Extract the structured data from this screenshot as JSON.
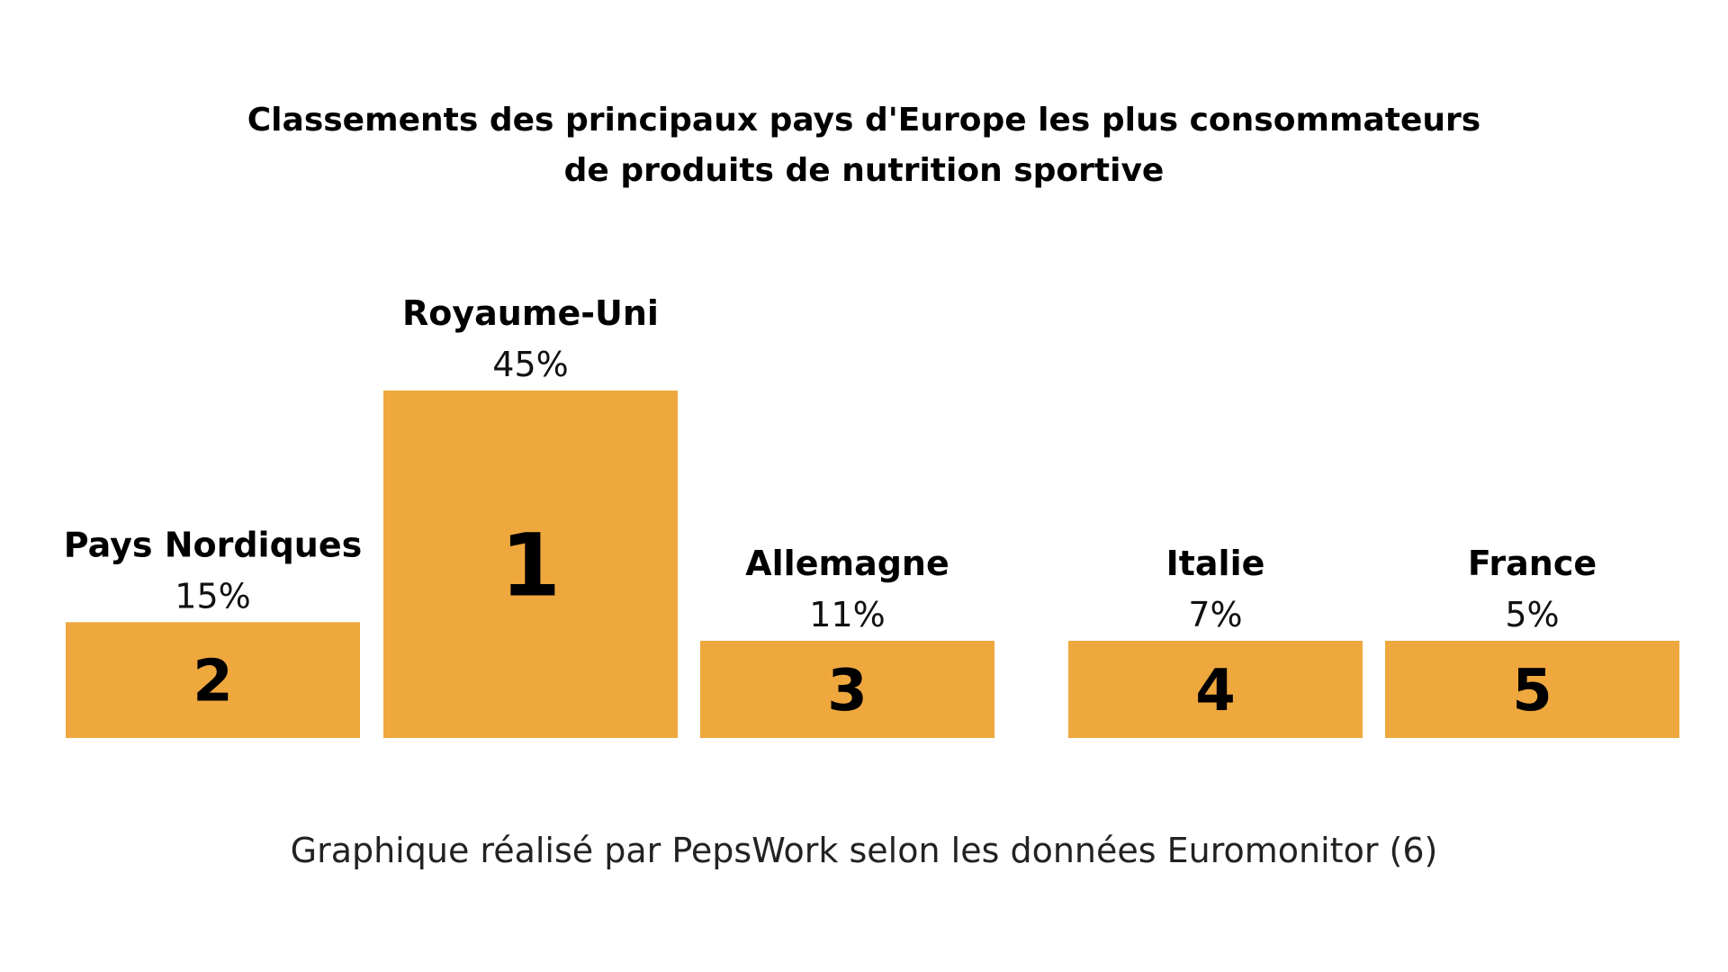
{
  "colors": {
    "bar": "#EFA83E",
    "text": "#000000",
    "background": "#FFFFFF"
  },
  "chart_data": {
    "type": "bar",
    "title": "Classements des principaux pays d'Europe les plus consommateurs de produits de nutrition sportive",
    "title_lines": [
      "Classements des principaux pays d'Europe les plus consommateurs",
      "de produits de nutrition sportive"
    ],
    "caption": "Graphique réalisé par PepsWork selon les données Euromonitor (6)",
    "categories": [
      "Pays Nordiques",
      "Royaume-Uni",
      "Allemagne",
      "Italie",
      "France"
    ],
    "values": [
      15,
      45,
      11,
      7,
      5
    ],
    "value_labels": [
      "15%",
      "45%",
      "11%",
      "7%",
      "5%"
    ],
    "ranks": [
      "2",
      "1",
      "3",
      "4",
      "5"
    ],
    "grid": false,
    "legend": "none"
  }
}
